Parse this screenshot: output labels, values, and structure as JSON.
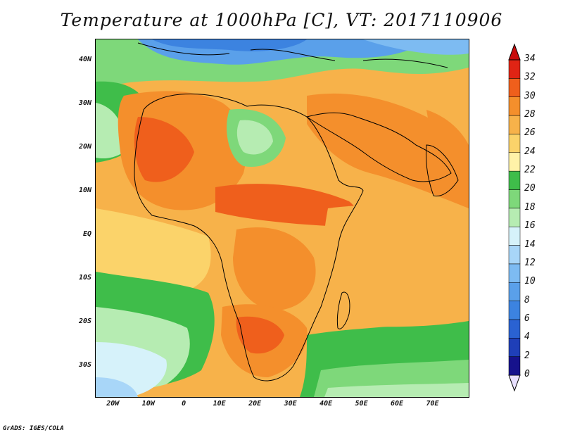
{
  "title": "Temperature at 1000hPa [C], VT: 2017110906",
  "credit": "GrADS: IGES/COLA",
  "map": {
    "lon_range": [
      -25,
      80
    ],
    "lat_range": [
      -37,
      45
    ],
    "lat_ticks": [
      {
        "lat": 40,
        "label": "40N"
      },
      {
        "lat": 30,
        "label": "30N"
      },
      {
        "lat": 20,
        "label": "20N"
      },
      {
        "lat": 10,
        "label": "10N"
      },
      {
        "lat": 0,
        "label": "EQ"
      },
      {
        "lat": -10,
        "label": "10S"
      },
      {
        "lat": -20,
        "label": "20S"
      },
      {
        "lat": -30,
        "label": "30S"
      }
    ],
    "lon_ticks": [
      {
        "lon": -20,
        "label": "20W"
      },
      {
        "lon": -10,
        "label": "10W"
      },
      {
        "lon": 0,
        "label": "0"
      },
      {
        "lon": 10,
        "label": "10E"
      },
      {
        "lon": 20,
        "label": "20E"
      },
      {
        "lon": 30,
        "label": "30E"
      },
      {
        "lon": 40,
        "label": "40E"
      },
      {
        "lon": 50,
        "label": "50E"
      },
      {
        "lon": 60,
        "label": "60E"
      },
      {
        "lon": 70,
        "label": "70E"
      }
    ]
  },
  "colorbar": {
    "levels": [
      "0",
      "2",
      "4",
      "6",
      "8",
      "10",
      "12",
      "14",
      "16",
      "18",
      "20",
      "22",
      "24",
      "26",
      "28",
      "30",
      "32",
      "34"
    ],
    "colors": [
      "#e8e0ff",
      "#16128c",
      "#1f3fb8",
      "#2a62d2",
      "#3c83e0",
      "#5aa0ea",
      "#7dbbf2",
      "#a8d6f8",
      "#d6f2fa",
      "#b6ecb2",
      "#7ed87a",
      "#3fbd4a",
      "#fff2a8",
      "#fbd36a",
      "#f7b24a",
      "#f48f2c",
      "#ef5f1c",
      "#e02414",
      "#c80c0c"
    ]
  }
}
